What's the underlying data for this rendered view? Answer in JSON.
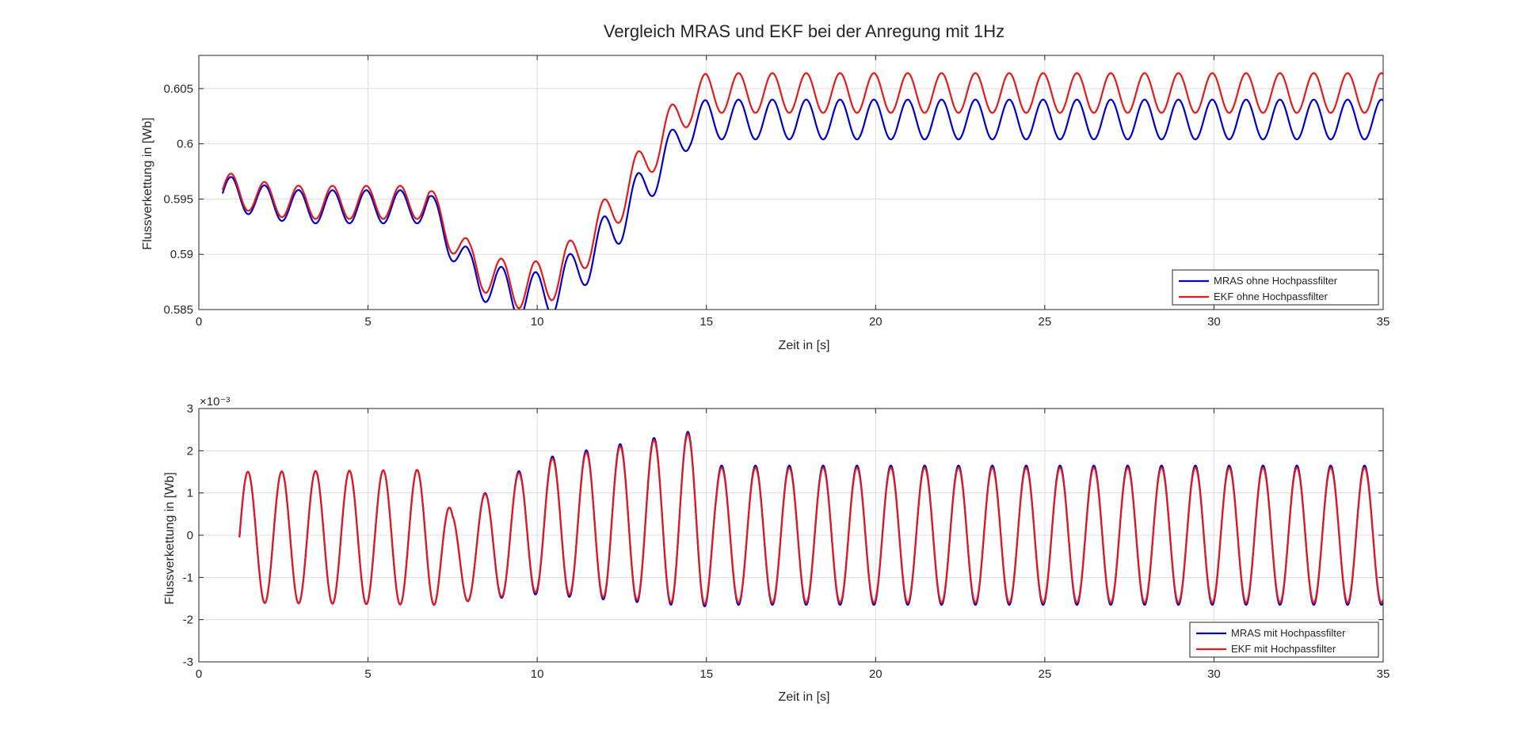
{
  "figure_title": "Vergleich MRAS und EKF bei der Anregung mit 1Hz",
  "colors": {
    "blue": "#0000cc",
    "red": "#e31a1c"
  },
  "chart_data": [
    {
      "type": "line",
      "xlabel": "Zeit in [s]",
      "ylabel": "Flussverkettung in [Wb]",
      "xlim": [
        0,
        35
      ],
      "ylim": [
        0.585,
        0.608
      ],
      "xticks": [
        0,
        5,
        10,
        15,
        20,
        25,
        30,
        35
      ],
      "xtick_labels": [
        "0",
        "5",
        "10",
        "15",
        "20",
        "25",
        "30",
        "35"
      ],
      "yticks": [
        0.585,
        0.59,
        0.595,
        0.6,
        0.605
      ],
      "ytick_labels": [
        "0.585",
        "0.59",
        "0.595",
        "0.6",
        "0.605"
      ],
      "exponent_label": "",
      "grid": true,
      "legend_position": "bottom-right",
      "oscillation_hz": 1,
      "series": [
        {
          "name": "MRAS ohne Hochpassfilter",
          "color": "#0000cc",
          "amplitude_x": [
            0.7,
            7,
            7.5,
            10,
            15,
            35
          ],
          "amplitude_y": [
            0.0015,
            0.0015,
            0.0017,
            0.0022,
            0.0018,
            0.0018
          ],
          "x": [
            0.7,
            1,
            2,
            3,
            4,
            5,
            6,
            6.8,
            7.5,
            8,
            8.5,
            9,
            9.5,
            10,
            10.5,
            11,
            11.5,
            12,
            12.5,
            13,
            13.5,
            14,
            14.5,
            15,
            16,
            20,
            25,
            30,
            35
          ],
          "y": [
            0.5955,
            0.5955,
            0.5947,
            0.5943,
            0.5943,
            0.5943,
            0.5943,
            0.5943,
            0.591,
            0.5885,
            0.5875,
            0.5868,
            0.5862,
            0.5862,
            0.5868,
            0.588,
            0.5895,
            0.5915,
            0.5932,
            0.5955,
            0.5975,
            0.5995,
            0.6015,
            0.6022,
            0.6022,
            0.6022,
            0.6022,
            0.6022,
            0.6022
          ]
        },
        {
          "name": "EKF ohne Hochpassfilter",
          "color": "#e31a1c",
          "amplitude_x": [
            0.7,
            7,
            7.5,
            10,
            15,
            35
          ],
          "amplitude_y": [
            0.0015,
            0.0015,
            0.0017,
            0.0021,
            0.0018,
            0.0018
          ],
          "x": [
            0.7,
            1,
            2,
            3,
            4,
            5,
            6,
            6.8,
            7.5,
            8,
            8.5,
            9,
            9.5,
            10,
            10.5,
            11,
            11.5,
            12,
            12.5,
            13,
            13.5,
            14,
            14.5,
            15,
            16,
            20,
            25,
            30,
            35
          ],
          "y": [
            0.5958,
            0.5958,
            0.595,
            0.5947,
            0.5947,
            0.5947,
            0.5947,
            0.5947,
            0.5917,
            0.5893,
            0.5883,
            0.5876,
            0.5871,
            0.5873,
            0.588,
            0.5893,
            0.591,
            0.5931,
            0.5951,
            0.5975,
            0.5997,
            0.6018,
            0.6036,
            0.6046,
            0.6046,
            0.6046,
            0.6046,
            0.6046,
            0.6046
          ]
        }
      ]
    },
    {
      "type": "line",
      "xlabel": "Zeit in [s]",
      "ylabel": "Flussverkettung in [Wb]",
      "xlim": [
        0,
        35
      ],
      "ylim": [
        -3,
        3
      ],
      "xticks": [
        0,
        5,
        10,
        15,
        20,
        25,
        30,
        35
      ],
      "xtick_labels": [
        "0",
        "5",
        "10",
        "15",
        "20",
        "25",
        "30",
        "35"
      ],
      "yticks": [
        -3,
        -2,
        -1,
        0,
        1,
        2,
        3
      ],
      "ytick_labels": [
        "-3",
        "-2",
        "-1",
        "0",
        "1",
        "2",
        "3"
      ],
      "exponent_label": "×10⁻³",
      "grid": true,
      "legend_position": "bottom-right",
      "oscillation_hz": 1,
      "series": [
        {
          "name": "MRAS mit Hochpassfilter",
          "color": "#0000cc",
          "amplitude_x": [
            1.2,
            7,
            7.5,
            10,
            14.8,
            15.3,
            35
          ],
          "amplitude_y": [
            1.55,
            1.6,
            1.05,
            1.6,
            2.1,
            1.65,
            1.65
          ],
          "x": [
            1.2,
            7,
            7.5,
            10,
            14.8,
            15.3,
            35
          ],
          "y": [
            -0.05,
            -0.05,
            -0.55,
            0.2,
            0.4,
            0,
            0
          ]
        },
        {
          "name": "EKF mit Hochpassfilter",
          "color": "#e31a1c",
          "amplitude_x": [
            1.2,
            7,
            7.5,
            10,
            14.8,
            15.3,
            35
          ],
          "amplitude_y": [
            1.55,
            1.6,
            1.05,
            1.55,
            2.05,
            1.6,
            1.6
          ],
          "x": [
            1.2,
            7,
            7.5,
            10,
            14.8,
            15.3,
            35
          ],
          "y": [
            -0.05,
            -0.05,
            -0.55,
            0.2,
            0.4,
            0,
            0
          ]
        }
      ]
    }
  ]
}
